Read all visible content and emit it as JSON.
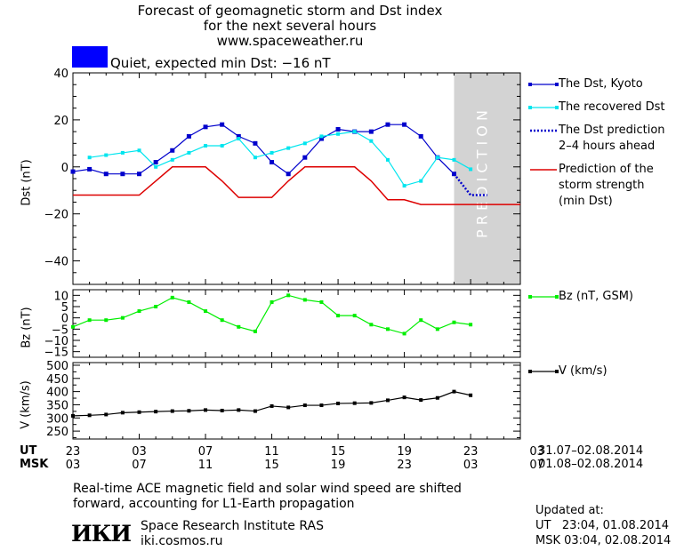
{
  "header": {
    "title_line1": "Forecast of geomagnetic storm and Dst index",
    "title_line2": "for the next several hours",
    "title_line3": "www.spaceweather.ru",
    "status_text": "Quiet, expected min Dst: −16 nT",
    "status_color": "#0000ff"
  },
  "legend": {
    "dst_kyoto": "The Dst, Kyoto",
    "dst_recovered": "The recovered Dst",
    "dst_prediction": "The Dst prediction\n2–4 hours ahead",
    "storm_strength": "Prediction of the\nstorm strength\n(min Dst)",
    "bz": "Bz (nT, GSM)",
    "v": "V (km/s)"
  },
  "time_axis": {
    "ut_label": "UT",
    "msk_label": "MSK",
    "ut_ticks": [
      "23",
      "03",
      "07",
      "11",
      "15",
      "19",
      "23",
      "03"
    ],
    "msk_ticks": [
      "03",
      "07",
      "11",
      "15",
      "19",
      "23",
      "03",
      "07"
    ],
    "ut_range": "31.07–02.08.2014",
    "msk_range": "01.08–02.08.2014"
  },
  "footer": {
    "note_line1": "Real-time ACE magnetic field and solar wind speed are shifted",
    "note_line2": "forward, accounting for L1-Earth propagation",
    "logo_text": "ИКИ",
    "institute": "Space Research Institute RAS",
    "website": "iki.cosmos.ru",
    "updated_label": "Updated at:",
    "updated_ut": "UT   23:04, 01.08.2014",
    "updated_msk": "MSK 03:04, 02.08.2014"
  },
  "colors": {
    "dst_kyoto": "#0000cc",
    "dst_recovered": "#00e5ee",
    "dst_prediction": "#0000cc",
    "storm_strength": "#dd0000",
    "bz": "#00ee00",
    "v": "#000000",
    "prediction_band": "#d3d3d3"
  },
  "chart_data": [
    {
      "type": "line",
      "panel": "dst",
      "ylabel": "Dst (nT)",
      "ylim": [
        -50,
        40
      ],
      "yticks": [
        40,
        20,
        0,
        -20,
        -40
      ],
      "xlim": [
        0,
        27
      ],
      "prediction_label": "P R E D I C T I O N",
      "prediction_start": 23,
      "series": [
        {
          "name": "The Dst, Kyoto",
          "x": [
            0,
            1,
            2,
            3,
            4,
            5,
            6,
            7,
            8,
            9,
            10,
            11,
            12,
            13,
            14,
            15,
            16,
            17,
            18,
            19,
            20,
            21,
            22,
            23
          ],
          "y": [
            -2,
            -1,
            -3,
            -3,
            -3,
            2,
            7,
            13,
            17,
            18,
            13,
            10,
            2,
            -3,
            4,
            12,
            16,
            15,
            15,
            18,
            18,
            13,
            4,
            -3
          ]
        },
        {
          "name": "The recovered Dst",
          "x": [
            1,
            2,
            3,
            4,
            5,
            6,
            7,
            8,
            9,
            10,
            11,
            12,
            13,
            14,
            15,
            16,
            17,
            18,
            19,
            20,
            21,
            22,
            23,
            24
          ],
          "y": [
            4,
            5,
            6,
            7,
            0,
            3,
            6,
            9,
            9,
            12,
            4,
            6,
            8,
            10,
            13,
            14,
            15,
            11,
            3,
            -8,
            -6,
            4,
            3,
            -1
          ]
        },
        {
          "name": "The Dst prediction 2–4 hours ahead",
          "x": [
            23,
            24,
            25
          ],
          "y": [
            -3,
            -12,
            -12
          ]
        },
        {
          "name": "Prediction of the storm strength (min Dst)",
          "x": [
            0,
            4,
            5,
            6,
            8,
            9,
            10,
            12,
            13,
            14,
            17,
            18,
            19,
            20,
            21,
            27
          ],
          "y": [
            -12,
            -12,
            -6,
            0,
            0,
            -6,
            -13,
            -13,
            -6,
            0,
            0,
            -6,
            -14,
            -14,
            -16,
            -16
          ]
        }
      ]
    },
    {
      "type": "line",
      "panel": "bz",
      "ylabel": "Bz (nT)",
      "ylim": [
        -17.5,
        12.5
      ],
      "yticks": [
        10,
        5,
        0,
        -5,
        -10,
        -15
      ],
      "xlim": [
        0,
        27
      ],
      "series": [
        {
          "name": "Bz (nT, GSM)",
          "x": [
            0,
            1,
            2,
            3,
            4,
            5,
            6,
            7,
            8,
            9,
            10,
            11,
            12,
            13,
            14,
            15,
            16,
            17,
            18,
            19,
            20,
            21,
            22,
            23,
            24
          ],
          "y": [
            -4,
            -1,
            -1,
            0,
            3,
            5,
            9,
            7,
            3,
            -1,
            -4,
            -6,
            7,
            10,
            8,
            7,
            1,
            1,
            -3,
            -5,
            -7,
            -1,
            -5,
            -2,
            -3
          ]
        }
      ]
    },
    {
      "type": "line",
      "panel": "v",
      "ylabel": "V (km/s)",
      "ylim": [
        220,
        510
      ],
      "yticks": [
        500,
        450,
        400,
        350,
        300,
        250
      ],
      "xlim": [
        0,
        27
      ],
      "series": [
        {
          "name": "V (km/s)",
          "x": [
            0,
            1,
            2,
            3,
            4,
            5,
            6,
            7,
            8,
            9,
            10,
            11,
            12,
            13,
            14,
            15,
            16,
            17,
            18,
            19,
            20,
            21,
            22,
            23,
            24
          ],
          "y": [
            308,
            310,
            313,
            320,
            322,
            324,
            326,
            327,
            330,
            328,
            330,
            326,
            345,
            340,
            348,
            348,
            355,
            356,
            357,
            367,
            378,
            368,
            376,
            400,
            386
          ]
        }
      ]
    }
  ]
}
